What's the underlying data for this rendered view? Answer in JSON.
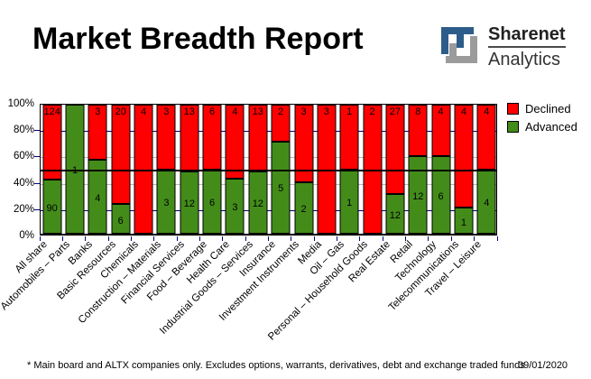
{
  "header": {
    "title": "Market Breadth Report",
    "logo": {
      "brand": "Sharenet",
      "sub": "Analytics"
    }
  },
  "chart_data": {
    "type": "bar",
    "variant": "100-percent-stacked-column",
    "categories": [
      "All share",
      "Automobiles – Parts",
      "Banks",
      "Basic Resources",
      "Chemicals",
      "Construction – Materials",
      "Financial Services",
      "Food – Beverage",
      "Health Care",
      "Industrial Goods – Services",
      "Insurance",
      "Investment Instruments",
      "Media",
      "Oil – Gas",
      "Personal – Household Goods",
      "Real Estate",
      "Retail",
      "Technology",
      "Telecommunications",
      "Travel – Leisure"
    ],
    "series": [
      {
        "name": "Declined",
        "color": "#fe0000",
        "values": [
          124,
          0,
          3,
          20,
          4,
          3,
          13,
          6,
          4,
          13,
          2,
          3,
          3,
          1,
          2,
          27,
          8,
          4,
          4,
          4
        ]
      },
      {
        "name": "Advanced",
        "color": "#438c1a",
        "values": [
          90,
          1,
          4,
          6,
          0,
          3,
          12,
          6,
          3,
          12,
          5,
          2,
          0,
          1,
          0,
          12,
          12,
          6,
          1,
          4
        ]
      }
    ],
    "y_axis": {
      "ticks": [
        "100%",
        "80%",
        "60%",
        "40%",
        "20%",
        "0%"
      ],
      "min": 0,
      "max": 100,
      "unit": "percent"
    },
    "reference_line": {
      "value": 50,
      "color": "#000000"
    },
    "gridline_colors": {
      "at_20_and_80": "#000080",
      "at_40_and_60": "#b8b8b8"
    },
    "legend_position": "right"
  },
  "footer": {
    "note": "* Main board and ALTX companies only. Excludes options, warrants, derivatives, debt and exchange traded funds",
    "date": "09/01/2020"
  }
}
